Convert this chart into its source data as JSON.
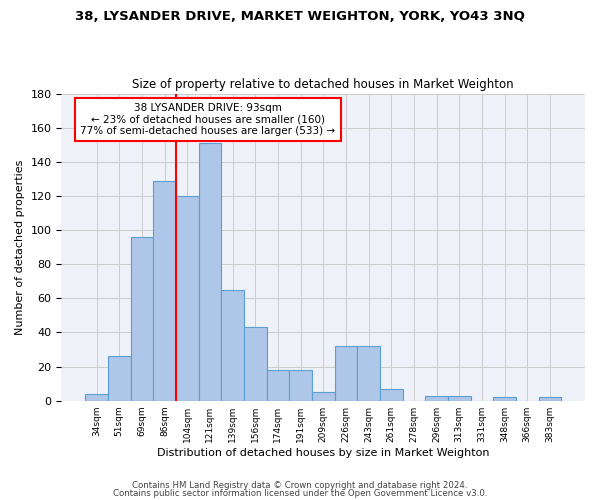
{
  "title": "38, LYSANDER DRIVE, MARKET WEIGHTON, YORK, YO43 3NQ",
  "subtitle": "Size of property relative to detached houses in Market Weighton",
  "xlabel": "Distribution of detached houses by size in Market Weighton",
  "ylabel": "Number of detached properties",
  "bar_labels": [
    "34sqm",
    "51sqm",
    "69sqm",
    "86sqm",
    "104sqm",
    "121sqm",
    "139sqm",
    "156sqm",
    "174sqm",
    "191sqm",
    "209sqm",
    "226sqm",
    "243sqm",
    "261sqm",
    "278sqm",
    "296sqm",
    "313sqm",
    "331sqm",
    "348sqm",
    "366sqm",
    "383sqm"
  ],
  "bar_values": [
    4,
    26,
    96,
    129,
    120,
    151,
    65,
    43,
    18,
    18,
    5,
    32,
    32,
    7,
    0,
    3,
    3,
    0,
    2,
    0,
    2
  ],
  "bar_color": "#aec6e8",
  "bar_edge_color": "#5a9fd4",
  "vline_x": 3.5,
  "vline_color": "red",
  "annotation_text": "38 LYSANDER DRIVE: 93sqm\n← 23% of detached houses are smaller (160)\n77% of semi-detached houses are larger (533) →",
  "annotation_box_color": "white",
  "annotation_box_edge": "red",
  "ylim": [
    0,
    180
  ],
  "yticks": [
    0,
    20,
    40,
    60,
    80,
    100,
    120,
    140,
    160,
    180
  ],
  "footer1": "Contains HM Land Registry data © Crown copyright and database right 2024.",
  "footer2": "Contains public sector information licensed under the Open Government Licence v3.0.",
  "grid_color": "#cccccc",
  "background_color": "#eef2f8"
}
